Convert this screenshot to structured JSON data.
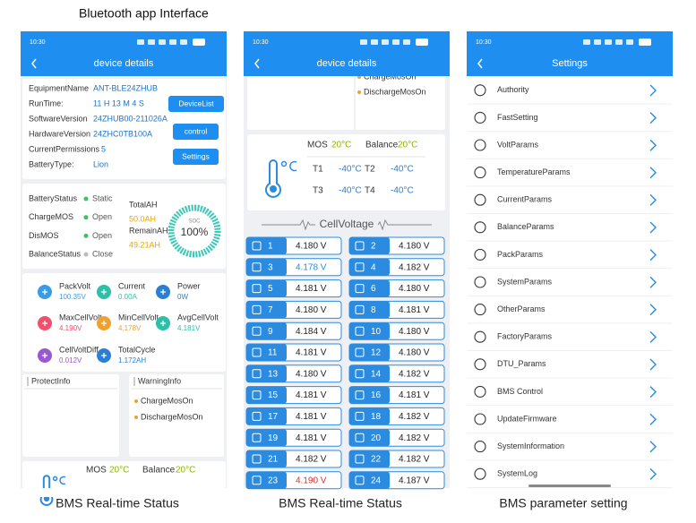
{
  "title": "Bluetooth app Interface",
  "status_time": "10:30",
  "phone1": {
    "header": "device details",
    "caption": "BMS Real-time Status",
    "info": [
      [
        "EquipmentName",
        "ANT-BLE24ZHUB"
      ],
      [
        "RunTime:",
        "11 H 13 M 4 S"
      ],
      [
        "SoftwareVersion",
        "24ZHUB00-211026A"
      ],
      [
        "HardwareVersion",
        "24ZHC0TB100A"
      ],
      [
        "CurrentPermissions",
        "5"
      ],
      [
        "BatteryType:",
        "Lion"
      ]
    ],
    "buttons": [
      "DeviceList",
      "control",
      "Settings"
    ],
    "status": [
      [
        "BatteryStatus",
        "Static"
      ],
      [
        "ChargeMOS",
        "Open"
      ],
      [
        "DisMOS",
        "Open"
      ],
      [
        "BalanceStatus",
        "Close"
      ]
    ],
    "total_ah": [
      "TotalAH",
      "50.0AH"
    ],
    "remain_ah": [
      "RemainAH",
      "49.21AH"
    ],
    "soc": [
      "SOC",
      "100%"
    ],
    "metrics": [
      {
        "label": "PackVolt",
        "value": "100.35V",
        "color": "#3a9be8"
      },
      {
        "label": "Current",
        "value": "0.00A",
        "color": "#2cc0a8"
      },
      {
        "label": "Power",
        "value": "0W",
        "color": "#2a7fd4"
      },
      {
        "label": "MaxCellVolt",
        "value": "4.190V",
        "color": "#f0506e"
      },
      {
        "label": "MinCellVolt",
        "value": "4.178V",
        "color": "#f0a030"
      },
      {
        "label": "AvgCellVolt",
        "value": "4.181V",
        "color": "#2cc0a8"
      },
      {
        "label": "CellVoltDiff",
        "value": "0.012V",
        "color": "#9b59d0"
      },
      {
        "label": "TotalCycle",
        "value": "1.172AH",
        "color": "#2a7fd4"
      }
    ],
    "protect_title": "ProtectInfo",
    "warning_title": "WarningInfo",
    "warnings": [
      "ChargeMosOn",
      "DischargeMosOn"
    ],
    "temps": [
      [
        "MOS",
        "20°C"
      ],
      [
        "Balance",
        "20°C"
      ]
    ]
  },
  "phone2": {
    "header": "device details",
    "caption": "BMS Real-time Status",
    "warnings": [
      "ChargeMosOn",
      "DischargeMosOn"
    ],
    "temps": [
      [
        "MOS",
        "20°C"
      ],
      [
        "Balance",
        "20°C"
      ]
    ],
    "sensors": [
      [
        "T1",
        "-40°C"
      ],
      [
        "T2",
        "-40°C"
      ],
      [
        "T3",
        "-40°C"
      ],
      [
        "T4",
        "-40°C"
      ]
    ],
    "cell_title": "CellVoltage",
    "cells": [
      {
        "n": 1,
        "v": "4.180 V"
      },
      {
        "n": 2,
        "v": "4.180 V"
      },
      {
        "n": 3,
        "v": "4.178 V",
        "color": "#2a8be0"
      },
      {
        "n": 4,
        "v": "4.182 V"
      },
      {
        "n": 5,
        "v": "4.181 V"
      },
      {
        "n": 6,
        "v": "4.180 V"
      },
      {
        "n": 7,
        "v": "4.180 V"
      },
      {
        "n": 8,
        "v": "4.181 V"
      },
      {
        "n": 9,
        "v": "4.184 V"
      },
      {
        "n": 10,
        "v": "4.180 V"
      },
      {
        "n": 11,
        "v": "4.181 V"
      },
      {
        "n": 12,
        "v": "4.180 V"
      },
      {
        "n": 13,
        "v": "4.180 V"
      },
      {
        "n": 14,
        "v": "4.182 V"
      },
      {
        "n": 15,
        "v": "4.181 V"
      },
      {
        "n": 16,
        "v": "4.181 V"
      },
      {
        "n": 17,
        "v": "4.181 V"
      },
      {
        "n": 18,
        "v": "4.182 V"
      },
      {
        "n": 19,
        "v": "4.181 V"
      },
      {
        "n": 20,
        "v": "4.182 V"
      },
      {
        "n": 21,
        "v": "4.182 V"
      },
      {
        "n": 22,
        "v": "4.182 V"
      },
      {
        "n": 23,
        "v": "4.190 V",
        "color": "#d83030"
      },
      {
        "n": 24,
        "v": "4.187 V"
      }
    ]
  },
  "phone3": {
    "header": "Settings",
    "caption": "BMS parameter setting",
    "items": [
      "Authority",
      "FastSetting",
      "VoltParams",
      "TemperatureParams",
      "CurrentParams",
      "BalanceParams",
      "PackParams",
      "SystemParams",
      "OtherParams",
      "FactoryParams",
      "DTU_Params",
      "BMS Control",
      "UpdateFirmware",
      "SystemInformation",
      "SystemLog"
    ]
  }
}
